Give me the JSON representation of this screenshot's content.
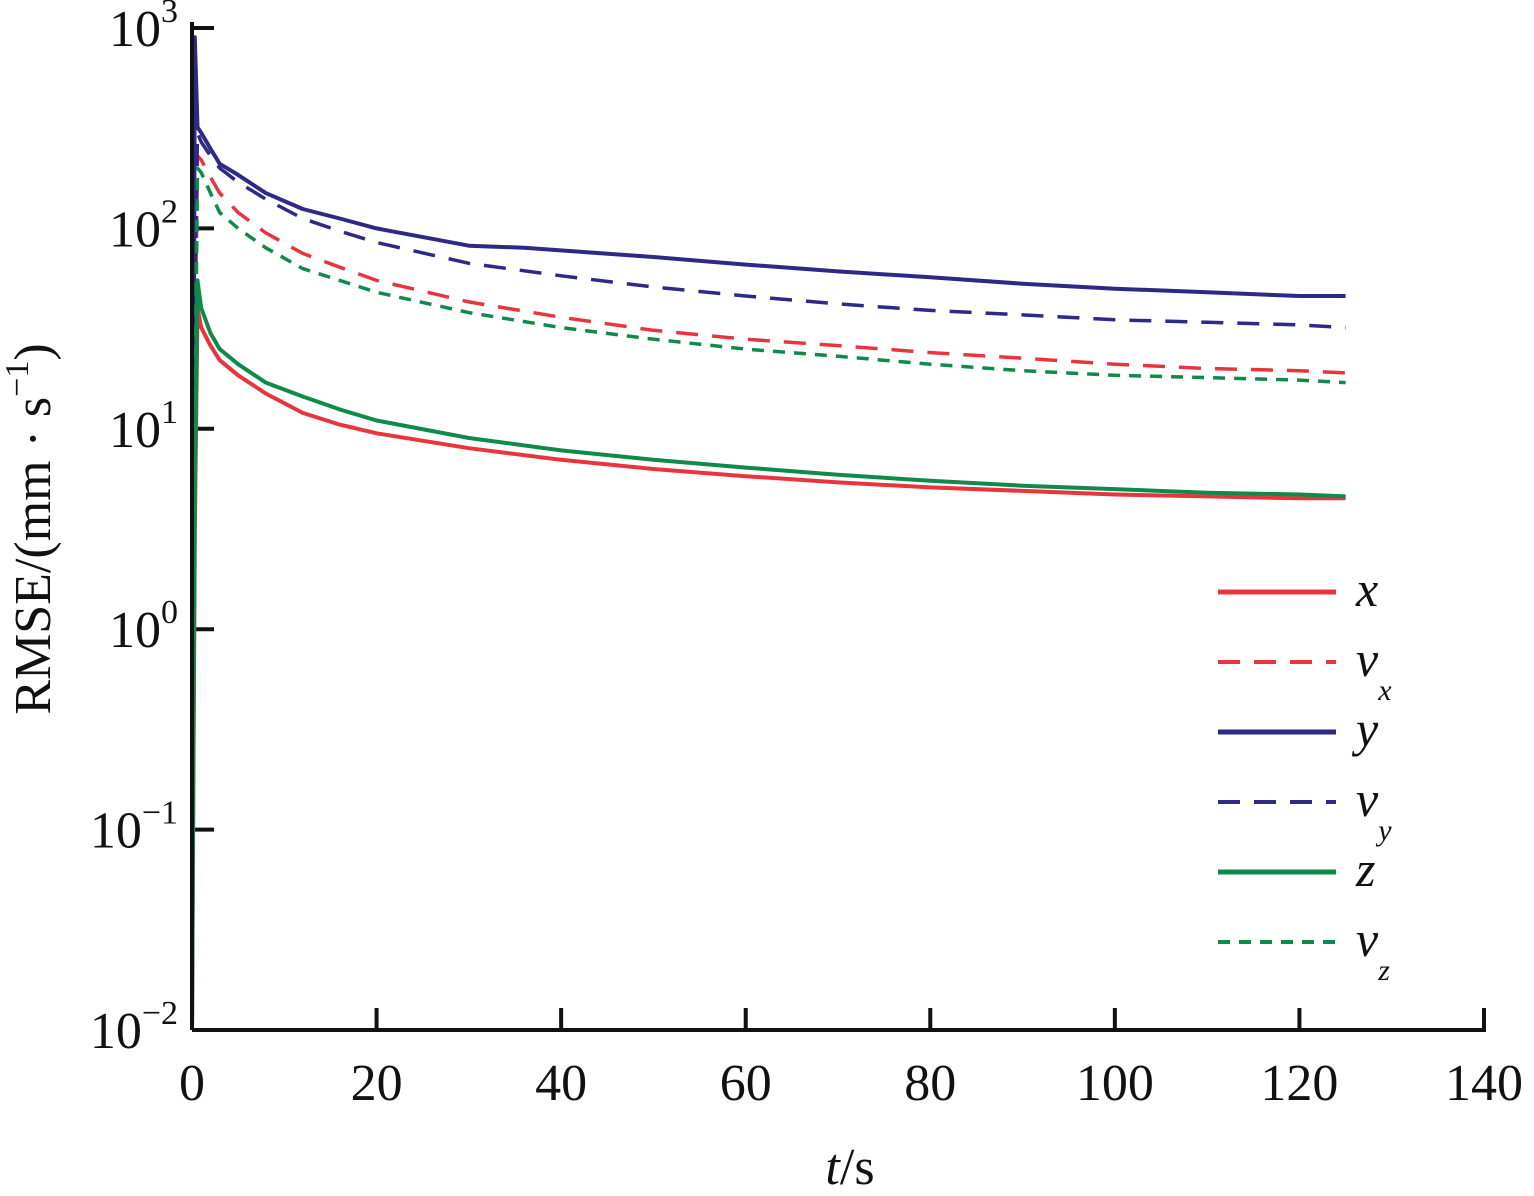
{
  "chart_data": {
    "type": "line",
    "title": "",
    "xlabel": {
      "italic": "t",
      "rest": "/s"
    },
    "ylabel": {
      "prefix": "RMSE/(mm · s",
      "exp": "−1",
      "suffix": ")"
    },
    "xlim": [
      0,
      140
    ],
    "ylim": [
      0.01,
      1000
    ],
    "yscale": "log",
    "xticks": [
      "0",
      "20",
      "40",
      "60",
      "80",
      "100",
      "120",
      "140"
    ],
    "yticks": [
      {
        "base": "10",
        "exp": "−2",
        "value": 0.01
      },
      {
        "base": "10",
        "exp": "−1",
        "value": 0.1
      },
      {
        "base": "10",
        "exp": "0",
        "value": 1
      },
      {
        "base": "10",
        "exp": "1",
        "value": 10
      },
      {
        "base": "10",
        "exp": "2",
        "value": 100
      },
      {
        "base": "10",
        "exp": "3",
        "value": 1000
      }
    ],
    "grid": false,
    "legend_position": "right",
    "series": [
      {
        "name": "x",
        "sub": "",
        "color": "#e8343c",
        "dash": "solid",
        "x": [
          0,
          0.3,
          0.6,
          1,
          2,
          3,
          5,
          8,
          12,
          16,
          20,
          30,
          40,
          50,
          60,
          70,
          80,
          90,
          100,
          110,
          120,
          125
        ],
        "y": [
          0.01,
          3,
          40,
          32,
          26,
          22,
          18.5,
          15,
          12,
          10.5,
          9.5,
          8,
          7,
          6.3,
          5.8,
          5.4,
          5.1,
          4.9,
          4.7,
          4.6,
          4.5,
          4.5
        ]
      },
      {
        "name": "v",
        "sub": "x",
        "color": "#e8343c",
        "dash": "dashed",
        "x": [
          0,
          0.3,
          0.6,
          1,
          2,
          3,
          5,
          8,
          12,
          16,
          20,
          30,
          40,
          50,
          60,
          70,
          80,
          90,
          100,
          110,
          120,
          125
        ],
        "y": [
          0.01,
          20,
          230,
          220,
          180,
          150,
          120,
          95,
          75,
          64,
          55,
          43,
          36,
          31,
          28,
          26,
          24,
          22.5,
          21,
          20,
          19.5,
          19
        ]
      },
      {
        "name": "y",
        "sub": "",
        "color": "#2e2886",
        "dash": "solid",
        "x": [
          0,
          0.3,
          0.6,
          1,
          2,
          3,
          5,
          8,
          12,
          16,
          20,
          30,
          36,
          50,
          60,
          70,
          80,
          90,
          100,
          110,
          120,
          125
        ],
        "y": [
          0.01,
          900,
          320,
          300,
          250,
          210,
          185,
          150,
          125,
          112,
          100,
          82,
          80,
          72,
          66,
          61,
          57,
          53,
          50,
          48,
          46,
          46
        ]
      },
      {
        "name": "v",
        "sub": "y",
        "color": "#2e2886",
        "dash": "dashed",
        "x": [
          0,
          0.3,
          0.6,
          1,
          2,
          3,
          5,
          8,
          12,
          16,
          20,
          30,
          40,
          50,
          60,
          70,
          80,
          90,
          100,
          110,
          120,
          125
        ],
        "y": [
          0.01,
          50,
          300,
          270,
          230,
          200,
          170,
          140,
          112,
          97,
          85,
          67,
          58,
          51,
          46,
          42,
          39,
          37,
          35,
          34,
          33,
          32
        ]
      },
      {
        "name": "z",
        "sub": "",
        "color": "#0f8a4a",
        "dash": "solid",
        "x": [
          0,
          0.3,
          0.6,
          1,
          2,
          3,
          5,
          8,
          12,
          16,
          20,
          30,
          40,
          50,
          60,
          70,
          80,
          90,
          100,
          110,
          120,
          125
        ],
        "y": [
          0.01,
          5,
          55,
          40,
          30,
          25,
          21,
          17,
          14.5,
          12.5,
          11,
          9,
          7.8,
          7,
          6.4,
          5.9,
          5.5,
          5.2,
          5,
          4.8,
          4.7,
          4.6
        ]
      },
      {
        "name": "v",
        "sub": "z",
        "color": "#0f8a4a",
        "dash": "dotted",
        "x": [
          0,
          0.3,
          0.6,
          1,
          2,
          3,
          5,
          8,
          12,
          16,
          20,
          30,
          40,
          50,
          60,
          70,
          80,
          90,
          100,
          110,
          120,
          125
        ],
        "y": [
          0.01,
          10,
          200,
          190,
          150,
          120,
          100,
          80,
          63,
          55,
          48,
          38,
          32,
          28,
          25,
          23,
          21,
          19.5,
          18.5,
          18,
          17.5,
          17
        ]
      }
    ]
  }
}
